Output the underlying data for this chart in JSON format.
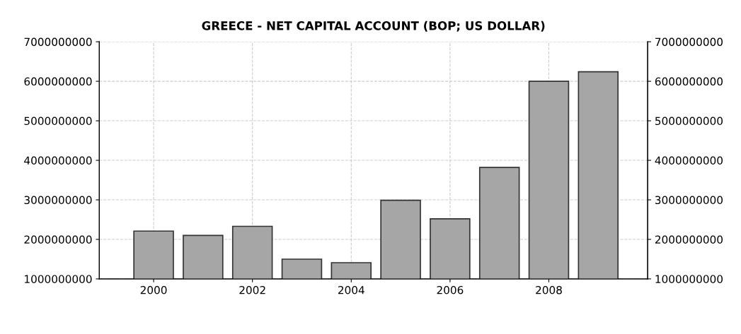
{
  "chart_data": {
    "type": "bar",
    "title": "GREECE - NET CAPITAL ACCOUNT (BOP; US DOLLAR)",
    "x": [
      2000,
      2001,
      2002,
      2003,
      2004,
      2005,
      2006,
      2007,
      2008,
      2009
    ],
    "values": [
      2210000000,
      2100000000,
      2330000000,
      1500000000,
      1410000000,
      2990000000,
      2520000000,
      3820000000,
      6000000000,
      6240000000
    ],
    "color": "#a6a6a6",
    "xlim": [
      1998.9,
      2010
    ],
    "xticks": [
      2000,
      2002,
      2004,
      2006,
      2008
    ],
    "ylim": [
      1000000000,
      7000000000
    ],
    "yticks": [
      1000000000,
      2000000000,
      3000000000,
      4000000000,
      5000000000,
      6000000000,
      7000000000
    ],
    "y2lim": [
      1000000000,
      7000000000
    ],
    "y2ticks": [
      1000000000,
      2000000000,
      3000000000,
      4000000000,
      5000000000,
      6000000000,
      7000000000
    ],
    "grid": true
  }
}
